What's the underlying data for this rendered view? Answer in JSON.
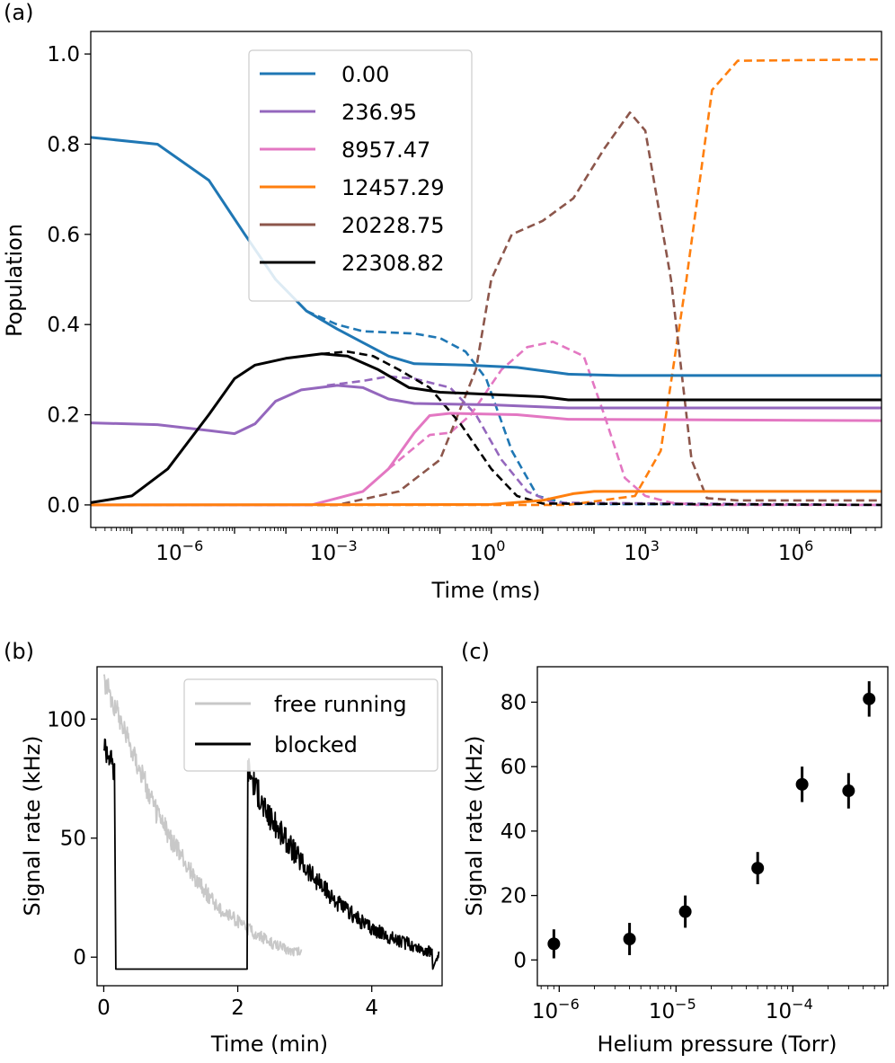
{
  "chart_data": [
    {
      "type": "line",
      "panel_label": "(a)",
      "title": "",
      "xlabel": "Time (ms)",
      "ylabel": "Population",
      "xscale": "log",
      "xlim_log10": [
        -7.8,
        7.6
      ],
      "ylim": [
        -0.05,
        1.05
      ],
      "x_tick_labels": [
        {
          "base": "10",
          "exp": "−6",
          "log10": -6
        },
        {
          "base": "10",
          "exp": "−3",
          "log10": -3
        },
        {
          "base": "10",
          "exp": "0",
          "log10": 0
        },
        {
          "base": "10",
          "exp": "3",
          "log10": 3
        },
        {
          "base": "10",
          "exp": "6",
          "log10": 6
        }
      ],
      "y_ticks": [
        0.0,
        0.2,
        0.4,
        0.6,
        0.8,
        1.0
      ],
      "y_tick_labels": [
        "0.0",
        "0.2",
        "0.4",
        "0.6",
        "0.8",
        "1.0"
      ],
      "legend_position": "upper-center",
      "note": "solid = with blocking, dashed = without; points given as [log10(time), population]",
      "series": [
        {
          "name": "0.00",
          "color": "#1f77b4",
          "solid": [
            [
              -7.8,
              0.815
            ],
            [
              -6.5,
              0.8
            ],
            [
              -5.5,
              0.72
            ],
            [
              -4.8,
              0.6
            ],
            [
              -4.2,
              0.5
            ],
            [
              -3.6,
              0.43
            ],
            [
              -3.0,
              0.39
            ],
            [
              -2.5,
              0.36
            ],
            [
              -2.0,
              0.33
            ],
            [
              -1.5,
              0.313
            ],
            [
              -0.5,
              0.31
            ],
            [
              0.5,
              0.305
            ],
            [
              1.5,
              0.29
            ],
            [
              2.5,
              0.287
            ],
            [
              7.6,
              0.287
            ]
          ],
          "dashed": [
            [
              -3.6,
              0.43
            ],
            [
              -3.0,
              0.4
            ],
            [
              -2.5,
              0.385
            ],
            [
              -1.5,
              0.38
            ],
            [
              -1.0,
              0.37
            ],
            [
              -0.5,
              0.34
            ],
            [
              -0.1,
              0.28
            ],
            [
              0.4,
              0.12
            ],
            [
              0.9,
              0.02
            ],
            [
              1.5,
              0.002
            ],
            [
              7.6,
              0.0
            ]
          ]
        },
        {
          "name": "236.95",
          "color": "#9467bd",
          "solid": [
            [
              -7.8,
              0.182
            ],
            [
              -6.5,
              0.178
            ],
            [
              -5.5,
              0.165
            ],
            [
              -5.0,
              0.158
            ],
            [
              -4.6,
              0.18
            ],
            [
              -4.2,
              0.23
            ],
            [
              -3.7,
              0.255
            ],
            [
              -3.0,
              0.265
            ],
            [
              -2.5,
              0.26
            ],
            [
              -2.0,
              0.235
            ],
            [
              -1.5,
              0.225
            ],
            [
              0.0,
              0.222
            ],
            [
              1.5,
              0.215
            ],
            [
              7.6,
              0.215
            ]
          ],
          "dashed": [
            [
              -3.2,
              0.265
            ],
            [
              -2.5,
              0.275
            ],
            [
              -2.0,
              0.285
            ],
            [
              -1.5,
              0.28
            ],
            [
              -0.8,
              0.26
            ],
            [
              -0.3,
              0.2
            ],
            [
              0.2,
              0.1
            ],
            [
              0.7,
              0.03
            ],
            [
              1.2,
              0.005
            ],
            [
              7.6,
              0.0
            ]
          ]
        },
        {
          "name": "8957.47",
          "color": "#e377c2",
          "solid": [
            [
              -7.8,
              0.0
            ],
            [
              -3.5,
              0.0
            ],
            [
              -2.5,
              0.03
            ],
            [
              -2.0,
              0.08
            ],
            [
              -1.5,
              0.16
            ],
            [
              -1.2,
              0.198
            ],
            [
              -0.8,
              0.203
            ],
            [
              0.5,
              0.2
            ],
            [
              1.5,
              0.19
            ],
            [
              7.6,
              0.187
            ]
          ],
          "dashed": [
            [
              -2.0,
              0.08
            ],
            [
              -1.2,
              0.155
            ],
            [
              -0.8,
              0.16
            ],
            [
              -0.4,
              0.2
            ],
            [
              0.2,
              0.3
            ],
            [
              0.7,
              0.35
            ],
            [
              1.2,
              0.362
            ],
            [
              1.8,
              0.33
            ],
            [
              2.2,
              0.2
            ],
            [
              2.6,
              0.06
            ],
            [
              3.0,
              0.02
            ],
            [
              3.5,
              0.005
            ],
            [
              4.0,
              0.0
            ],
            [
              7.6,
              0.0
            ]
          ]
        },
        {
          "name": "12457.29",
          "color": "#ff7f0e",
          "solid": [
            [
              -7.8,
              0.0
            ],
            [
              0.0,
              0.001
            ],
            [
              1.0,
              0.01
            ],
            [
              1.6,
              0.025
            ],
            [
              2.0,
              0.03
            ],
            [
              7.6,
              0.03
            ]
          ],
          "dashed": [
            [
              -7.8,
              0.0
            ],
            [
              1.5,
              0.0
            ],
            [
              2.8,
              0.02
            ],
            [
              3.3,
              0.12
            ],
            [
              3.8,
              0.5
            ],
            [
              4.3,
              0.92
            ],
            [
              4.8,
              0.985
            ],
            [
              7.6,
              0.988
            ]
          ]
        },
        {
          "name": "20228.75",
          "color": "#8c564b",
          "solid": [],
          "dashed": [
            [
              -7.8,
              0.0
            ],
            [
              -3.0,
              0.0
            ],
            [
              -1.8,
              0.03
            ],
            [
              -1.0,
              0.1
            ],
            [
              -0.3,
              0.3
            ],
            [
              0.0,
              0.5
            ],
            [
              0.4,
              0.6
            ],
            [
              1.0,
              0.63
            ],
            [
              1.6,
              0.68
            ],
            [
              2.2,
              0.79
            ],
            [
              2.7,
              0.87
            ],
            [
              3.0,
              0.83
            ],
            [
              3.5,
              0.5
            ],
            [
              3.9,
              0.1
            ],
            [
              4.2,
              0.015
            ],
            [
              4.8,
              0.01
            ],
            [
              7.6,
              0.01
            ]
          ]
        },
        {
          "name": "22308.82",
          "color": "#000000",
          "solid": [
            [
              -7.8,
              0.005
            ],
            [
              -7.0,
              0.02
            ],
            [
              -6.3,
              0.08
            ],
            [
              -5.5,
              0.2
            ],
            [
              -5.0,
              0.28
            ],
            [
              -4.6,
              0.31
            ],
            [
              -4.0,
              0.325
            ],
            [
              -3.3,
              0.335
            ],
            [
              -2.8,
              0.33
            ],
            [
              -2.2,
              0.3
            ],
            [
              -1.6,
              0.26
            ],
            [
              -1.0,
              0.25
            ],
            [
              0.0,
              0.245
            ],
            [
              1.0,
              0.24
            ],
            [
              1.5,
              0.233
            ],
            [
              7.6,
              0.233
            ]
          ],
          "dashed": [
            [
              -3.3,
              0.335
            ],
            [
              -2.8,
              0.34
            ],
            [
              -2.3,
              0.33
            ],
            [
              -1.8,
              0.3
            ],
            [
              -1.2,
              0.26
            ],
            [
              -0.6,
              0.18
            ],
            [
              0.0,
              0.08
            ],
            [
              0.5,
              0.02
            ],
            [
              1.0,
              0.003
            ],
            [
              7.6,
              0.0
            ]
          ]
        }
      ]
    },
    {
      "type": "line",
      "panel_label": "(b)",
      "xlabel": "Time (min)",
      "ylabel": "Signal rate (kHz)",
      "xlim": [
        -0.1,
        5.05
      ],
      "ylim": [
        -12,
        122
      ],
      "x_ticks": [
        0,
        2,
        4
      ],
      "y_ticks": [
        0,
        50,
        100
      ],
      "legend_position": "upper-right",
      "series": [
        {
          "name": "free running",
          "color": "#c8c8c8",
          "points": [
            [
              0.0,
              117
            ],
            [
              0.25,
              100
            ],
            [
              0.5,
              82
            ],
            [
              0.75,
              63
            ],
            [
              1.0,
              50
            ],
            [
              1.25,
              38
            ],
            [
              1.5,
              28
            ],
            [
              1.75,
              20
            ],
            [
              2.0,
              15
            ],
            [
              2.25,
              10
            ],
            [
              2.5,
              6
            ],
            [
              2.75,
              3
            ],
            [
              2.95,
              2
            ]
          ]
        },
        {
          "name": "blocked",
          "color": "#000000",
          "points": [
            [
              0.0,
              90
            ],
            [
              0.08,
              85
            ],
            [
              0.16,
              78
            ],
            [
              0.18,
              -5
            ],
            [
              0.2,
              -5
            ],
            [
              2.14,
              -5
            ],
            [
              2.15,
              80
            ],
            [
              2.4,
              62
            ],
            [
              2.7,
              50
            ],
            [
              3.0,
              38
            ],
            [
              3.3,
              28
            ],
            [
              3.6,
              20
            ],
            [
              3.9,
              14
            ],
            [
              4.2,
              9
            ],
            [
              4.5,
              6
            ],
            [
              4.8,
              3
            ],
            [
              4.9,
              2
            ],
            [
              4.91,
              -5
            ],
            [
              5.0,
              2
            ]
          ]
        }
      ]
    },
    {
      "type": "scatter",
      "panel_label": "(c)",
      "xlabel": "Helium pressure (Torr)",
      "ylabel": "Signal rate (kHz)",
      "xscale": "log",
      "xlim": [
        6.5e-07,
        0.00065
      ],
      "ylim": [
        -8,
        91
      ],
      "x_tick_labels": [
        {
          "base": "10",
          "exp": "−6",
          "log10": -6
        },
        {
          "base": "10",
          "exp": "−5",
          "log10": -5
        },
        {
          "base": "10",
          "exp": "−4",
          "log10": -4
        }
      ],
      "y_ticks": [
        0,
        20,
        40,
        60,
        80
      ],
      "color": "#000000",
      "points": [
        {
          "x": 9e-07,
          "y": 5,
          "err": 4.5
        },
        {
          "x": 4e-06,
          "y": 6.5,
          "err": 5
        },
        {
          "x": 1.2e-05,
          "y": 15,
          "err": 5
        },
        {
          "x": 5e-05,
          "y": 28.5,
          "err": 5
        },
        {
          "x": 0.00012,
          "y": 54.5,
          "err": 5.5
        },
        {
          "x": 0.0003,
          "y": 52.5,
          "err": 5.5
        },
        {
          "x": 0.00045,
          "y": 81,
          "err": 5.5
        }
      ]
    }
  ]
}
